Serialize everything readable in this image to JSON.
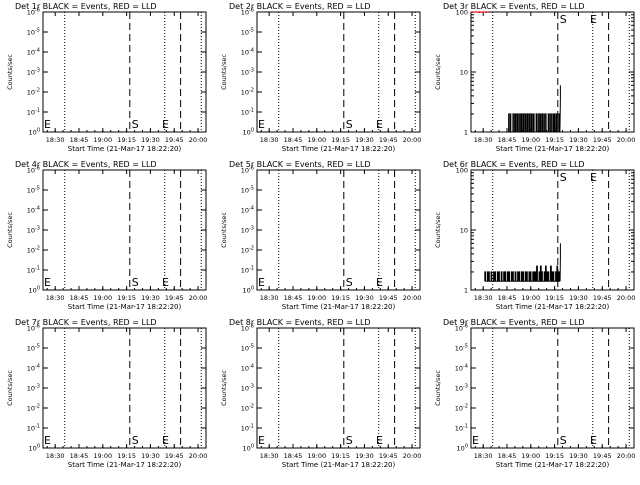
{
  "chart_data": [
    {
      "type": "line",
      "title": "Det 1r BLACK = Events, RED = LLD",
      "xlabel": "Start Time (21-Mar-17 18:22:20)",
      "ylabel": "Counts/sec",
      "y_scale": "log",
      "ylim_exp": [
        0,
        -6
      ],
      "yticks": [
        "10^0",
        "10^-1",
        "10^-2",
        "10^-3",
        "10^-4",
        "10^-5",
        "10^-6"
      ],
      "xticks": [
        "18:30",
        "18:45",
        "19:00",
        "19:15",
        "19:30",
        "19:45",
        "20:00"
      ],
      "xlim": [
        "18:22:20",
        "20:05"
      ],
      "dotted_lines": [
        "18:36",
        "19:39",
        "20:02"
      ],
      "dashed_lines": [
        "19:17",
        "19:49"
      ],
      "markers": [
        {
          "label": "S",
          "time": "19:17"
        },
        {
          "label": "E",
          "time": "18:22:20"
        },
        {
          "label": "E",
          "time": "19:36"
        }
      ],
      "series": []
    },
    {
      "type": "line",
      "title": "Det 2r BLACK = Events, RED = LLD",
      "xlabel": "Start Time (21-Mar-17 18:22:20)",
      "ylabel": "Counts/sec",
      "y_scale": "log",
      "ylim_exp": [
        0,
        -6
      ],
      "yticks": [
        "10^0",
        "10^-1",
        "10^-2",
        "10^-3",
        "10^-4",
        "10^-5",
        "10^-6"
      ],
      "xticks": [
        "18:30",
        "18:45",
        "19:00",
        "19:15",
        "19:30",
        "19:45",
        "20:00"
      ],
      "xlim": [
        "18:22:20",
        "20:05"
      ],
      "dotted_lines": [
        "18:36",
        "19:39",
        "20:02"
      ],
      "dashed_lines": [
        "19:17",
        "19:49"
      ],
      "markers": [
        {
          "label": "S",
          "time": "19:17"
        },
        {
          "label": "E",
          "time": "18:22:20"
        },
        {
          "label": "E",
          "time": "19:36"
        }
      ],
      "series": []
    },
    {
      "type": "line",
      "title": "Det 3r BLACK = Events, RED = LLD",
      "xlabel": "Start Time (21-Mar-17 18:22:20)",
      "ylabel": "Counts/sec",
      "y_scale": "log",
      "ylim_exp": [
        0,
        2
      ],
      "yticks": [
        "1",
        "10",
        "100"
      ],
      "xticks": [
        "18:30",
        "18:45",
        "19:00",
        "19:15",
        "19:30",
        "19:45",
        "20:00"
      ],
      "xlim": [
        "18:22:20",
        "20:05"
      ],
      "dotted_lines": [
        "18:36",
        "19:39",
        "20:02"
      ],
      "dashed_lines": [
        "19:17",
        "19:49"
      ],
      "markers": [
        {
          "label": "S",
          "time": "19:17"
        },
        {
          "label": "E",
          "time": "19:36"
        }
      ],
      "series": [
        {
          "color": "#000000",
          "kind": "events",
          "start": "18:46",
          "end": "19:18",
          "low": 1.0,
          "values": [
            2,
            1,
            2,
            1,
            1,
            2,
            1,
            2,
            2,
            1,
            2,
            1,
            2,
            1,
            2,
            2,
            1,
            2,
            1,
            2,
            1,
            2,
            2,
            1,
            2,
            1,
            2,
            1,
            2,
            2,
            1,
            1,
            2,
            1,
            2,
            1,
            2,
            2,
            1,
            2,
            1,
            2,
            1,
            2,
            1,
            1,
            2,
            1,
            2,
            1,
            2,
            1,
            2,
            2,
            1,
            2,
            1,
            2,
            1,
            2
          ],
          "final": [
            3.5,
            6
          ]
        },
        {
          "color": "#ff0000",
          "kind": "lld",
          "start": "18:22:20",
          "end": "18:33",
          "values": [
            100,
            98,
            100,
            99,
            100,
            98,
            100,
            99,
            100,
            98,
            100
          ]
        }
      ]
    },
    {
      "type": "line",
      "title": "Det 4r BLACK = Events, RED = LLD",
      "xlabel": "Start Time (21-Mar-17 18:22:20)",
      "ylabel": "Counts/sec",
      "y_scale": "log",
      "ylim_exp": [
        0,
        -6
      ],
      "yticks": [
        "10^0",
        "10^-1",
        "10^-2",
        "10^-3",
        "10^-4",
        "10^-5",
        "10^-6"
      ],
      "xticks": [
        "18:30",
        "18:45",
        "19:00",
        "19:15",
        "19:30",
        "19:45",
        "20:00"
      ],
      "xlim": [
        "18:22:20",
        "20:05"
      ],
      "dotted_lines": [
        "18:36",
        "19:39",
        "20:02"
      ],
      "dashed_lines": [
        "19:17",
        "19:49"
      ],
      "markers": [
        {
          "label": "S",
          "time": "19:17"
        },
        {
          "label": "E",
          "time": "18:22:20"
        },
        {
          "label": "E",
          "time": "19:36"
        }
      ],
      "series": []
    },
    {
      "type": "line",
      "title": "Det 5r BLACK = Events, RED = LLD",
      "xlabel": "Start Time (21-Mar-17 18:22:20)",
      "ylabel": "Counts/sec",
      "y_scale": "log",
      "ylim_exp": [
        0,
        -6
      ],
      "yticks": [
        "10^0",
        "10^-1",
        "10^-2",
        "10^-3",
        "10^-4",
        "10^-5",
        "10^-6"
      ],
      "xticks": [
        "18:30",
        "18:45",
        "19:00",
        "19:15",
        "19:30",
        "19:45",
        "20:00"
      ],
      "xlim": [
        "18:22:20",
        "20:05"
      ],
      "dotted_lines": [
        "18:36",
        "19:39",
        "20:02"
      ],
      "dashed_lines": [
        "19:17",
        "19:49"
      ],
      "markers": [
        {
          "label": "S",
          "time": "19:17"
        },
        {
          "label": "E",
          "time": "18:22:20"
        },
        {
          "label": "E",
          "time": "19:36"
        }
      ],
      "series": []
    },
    {
      "type": "line",
      "title": "Det 6r BLACK = Events, RED = LLD",
      "xlabel": "Start Time (21-Mar-17 18:22:20)",
      "ylabel": "Counts/sec",
      "y_scale": "log",
      "ylim_exp": [
        0,
        2
      ],
      "yticks": [
        "1",
        "10",
        "100"
      ],
      "xticks": [
        "18:30",
        "18:45",
        "19:00",
        "19:15",
        "19:30",
        "19:45",
        "20:00"
      ],
      "xlim": [
        "18:22:20",
        "20:05"
      ],
      "dotted_lines": [
        "18:36",
        "19:39",
        "20:02"
      ],
      "dashed_lines": [
        "19:17",
        "19:49"
      ],
      "markers": [
        {
          "label": "S",
          "time": "19:17"
        },
        {
          "label": "E",
          "time": "19:36"
        }
      ],
      "series": [
        {
          "color": "#000000",
          "kind": "events",
          "start": "18:31",
          "end": "19:18",
          "low": 1.4,
          "values": [
            2,
            1.4,
            2,
            2,
            1.4,
            2,
            1.4,
            2,
            2,
            1.4,
            2,
            2,
            1.4,
            2,
            1.4,
            2,
            2,
            1.4,
            2,
            2,
            1.4,
            2,
            2,
            1.4,
            2,
            1.4,
            2,
            2,
            1.4,
            2,
            2,
            1.4,
            2,
            2,
            1.4,
            2,
            2,
            1.4,
            2,
            2,
            2,
            2.5,
            1.4,
            2,
            2.5,
            2,
            1.4,
            2,
            2.5,
            2,
            2,
            1.4,
            2.5,
            2,
            2,
            1.4,
            2,
            2.5,
            2,
            2
          ],
          "final": [
            3.5,
            6
          ]
        }
      ]
    },
    {
      "type": "line",
      "title": "Det 7r BLACK = Events, RED = LLD",
      "xlabel": "Start Time (21-Mar-17 18:22:20)",
      "ylabel": "Counts/sec",
      "y_scale": "log",
      "ylim_exp": [
        0,
        -6
      ],
      "yticks": [
        "10^0",
        "10^-1",
        "10^-2",
        "10^-3",
        "10^-4",
        "10^-5",
        "10^-6"
      ],
      "xticks": [
        "18:30",
        "18:45",
        "19:00",
        "19:15",
        "19:30",
        "19:45",
        "20:00"
      ],
      "xlim": [
        "18:22:20",
        "20:05"
      ],
      "dotted_lines": [
        "18:36",
        "19:39",
        "20:02"
      ],
      "dashed_lines": [
        "19:17",
        "19:49"
      ],
      "markers": [
        {
          "label": "S",
          "time": "19:17"
        },
        {
          "label": "E",
          "time": "18:22:20"
        },
        {
          "label": "E",
          "time": "19:36"
        }
      ],
      "series": []
    },
    {
      "type": "line",
      "title": "Det 8r BLACK = Events, RED = LLD",
      "xlabel": "Start Time (21-Mar-17 18:22:20)",
      "ylabel": "Counts/sec",
      "y_scale": "log",
      "ylim_exp": [
        0,
        -6
      ],
      "yticks": [
        "10^0",
        "10^-1",
        "10^-2",
        "10^-3",
        "10^-4",
        "10^-5",
        "10^-6"
      ],
      "xticks": [
        "18:30",
        "18:45",
        "19:00",
        "19:15",
        "19:30",
        "19:45",
        "20:00"
      ],
      "xlim": [
        "18:22:20",
        "20:05"
      ],
      "dotted_lines": [
        "18:36",
        "19:39",
        "20:02"
      ],
      "dashed_lines": [
        "19:17",
        "19:49"
      ],
      "markers": [
        {
          "label": "S",
          "time": "19:17"
        },
        {
          "label": "E",
          "time": "18:22:20"
        },
        {
          "label": "E",
          "time": "19:36"
        }
      ],
      "series": []
    },
    {
      "type": "line",
      "title": "Det 9r BLACK = Events, RED = LLD",
      "xlabel": "Start Time (21-Mar-17 18:22:20)",
      "ylabel": "Counts/sec",
      "y_scale": "log",
      "ylim_exp": [
        0,
        -6
      ],
      "yticks": [
        "10^0",
        "10^-1",
        "10^-2",
        "10^-3",
        "10^-4",
        "10^-5",
        "10^-6"
      ],
      "xticks": [
        "18:30",
        "18:45",
        "19:00",
        "19:15",
        "19:30",
        "19:45",
        "20:00"
      ],
      "xlim": [
        "18:22:20",
        "20:05"
      ],
      "dotted_lines": [
        "18:36",
        "19:39",
        "20:02"
      ],
      "dashed_lines": [
        "19:17",
        "19:49"
      ],
      "markers": [
        {
          "label": "S",
          "time": "19:17"
        },
        {
          "label": "E",
          "time": "18:22:20"
        },
        {
          "label": "E",
          "time": "19:36"
        }
      ],
      "series": []
    }
  ]
}
